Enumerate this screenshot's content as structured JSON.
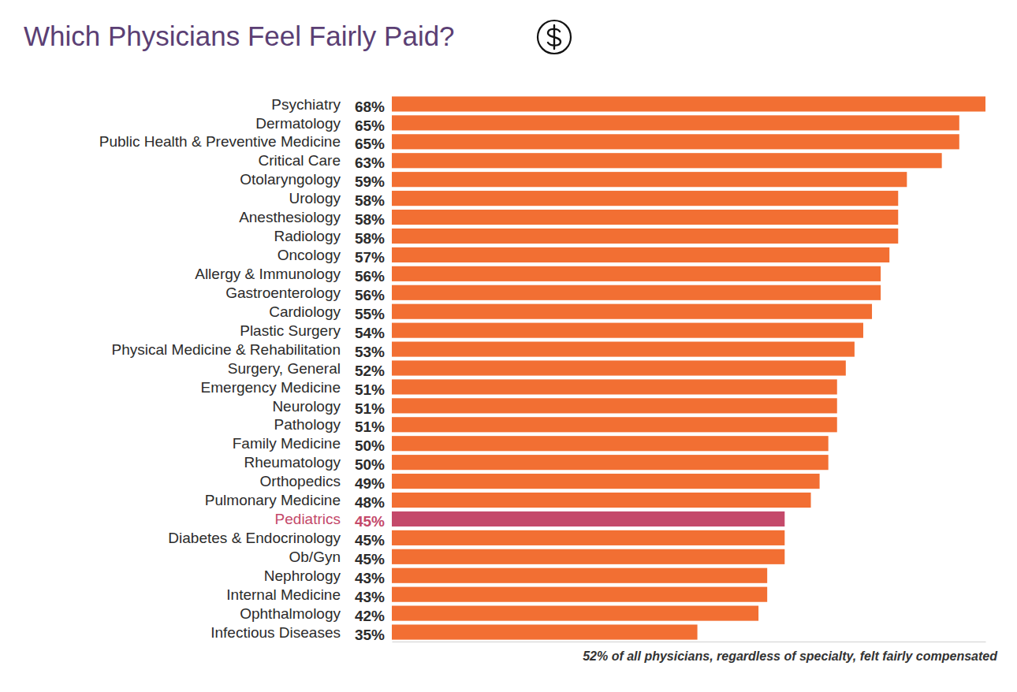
{
  "chart_data": {
    "type": "bar",
    "orientation": "horizontal",
    "title": "Which Physicians Feel Fairly Paid?",
    "annotation": "52% of all physicians, regardless of specialty, felt fairly compensated",
    "categories": [
      "Psychiatry",
      "Dermatology",
      "Public Health & Preventive Medicine",
      "Critical Care",
      "Otolaryngology",
      "Urology",
      "Anesthesiology",
      "Radiology",
      "Oncology",
      "Allergy & Immunology",
      "Gastroenterology",
      "Cardiology",
      "Plastic Surgery",
      "Physical Medicine & Rehabilitation",
      "Surgery, General",
      "Emergency Medicine",
      "Neurology",
      "Pathology",
      "Family Medicine",
      "Rheumatology",
      "Orthopedics",
      "Pulmonary Medicine",
      "Pediatrics",
      "Diabetes & Endocrinology",
      "Ob/Gyn",
      "Nephrology",
      "Internal Medicine",
      "Ophthalmology",
      "Infectious Diseases"
    ],
    "values": [
      68,
      65,
      65,
      63,
      59,
      58,
      58,
      58,
      57,
      56,
      56,
      55,
      54,
      53,
      52,
      51,
      51,
      51,
      50,
      50,
      49,
      48,
      45,
      45,
      45,
      43,
      43,
      42,
      35
    ],
    "value_labels": [
      "68%",
      "65%",
      "65%",
      "63%",
      "59%",
      "58%",
      "58%",
      "58%",
      "57%",
      "56%",
      "56%",
      "55%",
      "54%",
      "53%",
      "52%",
      "51%",
      "51%",
      "51%",
      "50%",
      "50%",
      "49%",
      "48%",
      "45%",
      "45%",
      "45%",
      "43%",
      "43%",
      "42%",
      "35%"
    ],
    "colors": [
      "#f26f33",
      "#f26f33",
      "#f26f33",
      "#f26f33",
      "#f26f33",
      "#f26f33",
      "#f26f33",
      "#f26f33",
      "#f26f33",
      "#f26f33",
      "#f26f33",
      "#f26f33",
      "#f26f33",
      "#f26f33",
      "#f26f33",
      "#f26f33",
      "#f26f33",
      "#f26f33",
      "#f26f33",
      "#f26f33",
      "#f26f33",
      "#f26f33",
      "#c4496a",
      "#f26f33",
      "#f26f33",
      "#f26f33",
      "#f26f33",
      "#f26f33",
      "#f26f33"
    ],
    "xlim": [
      0,
      68
    ],
    "xticks": [],
    "grid": false,
    "data_labels": true,
    "tick_labels": false
  }
}
